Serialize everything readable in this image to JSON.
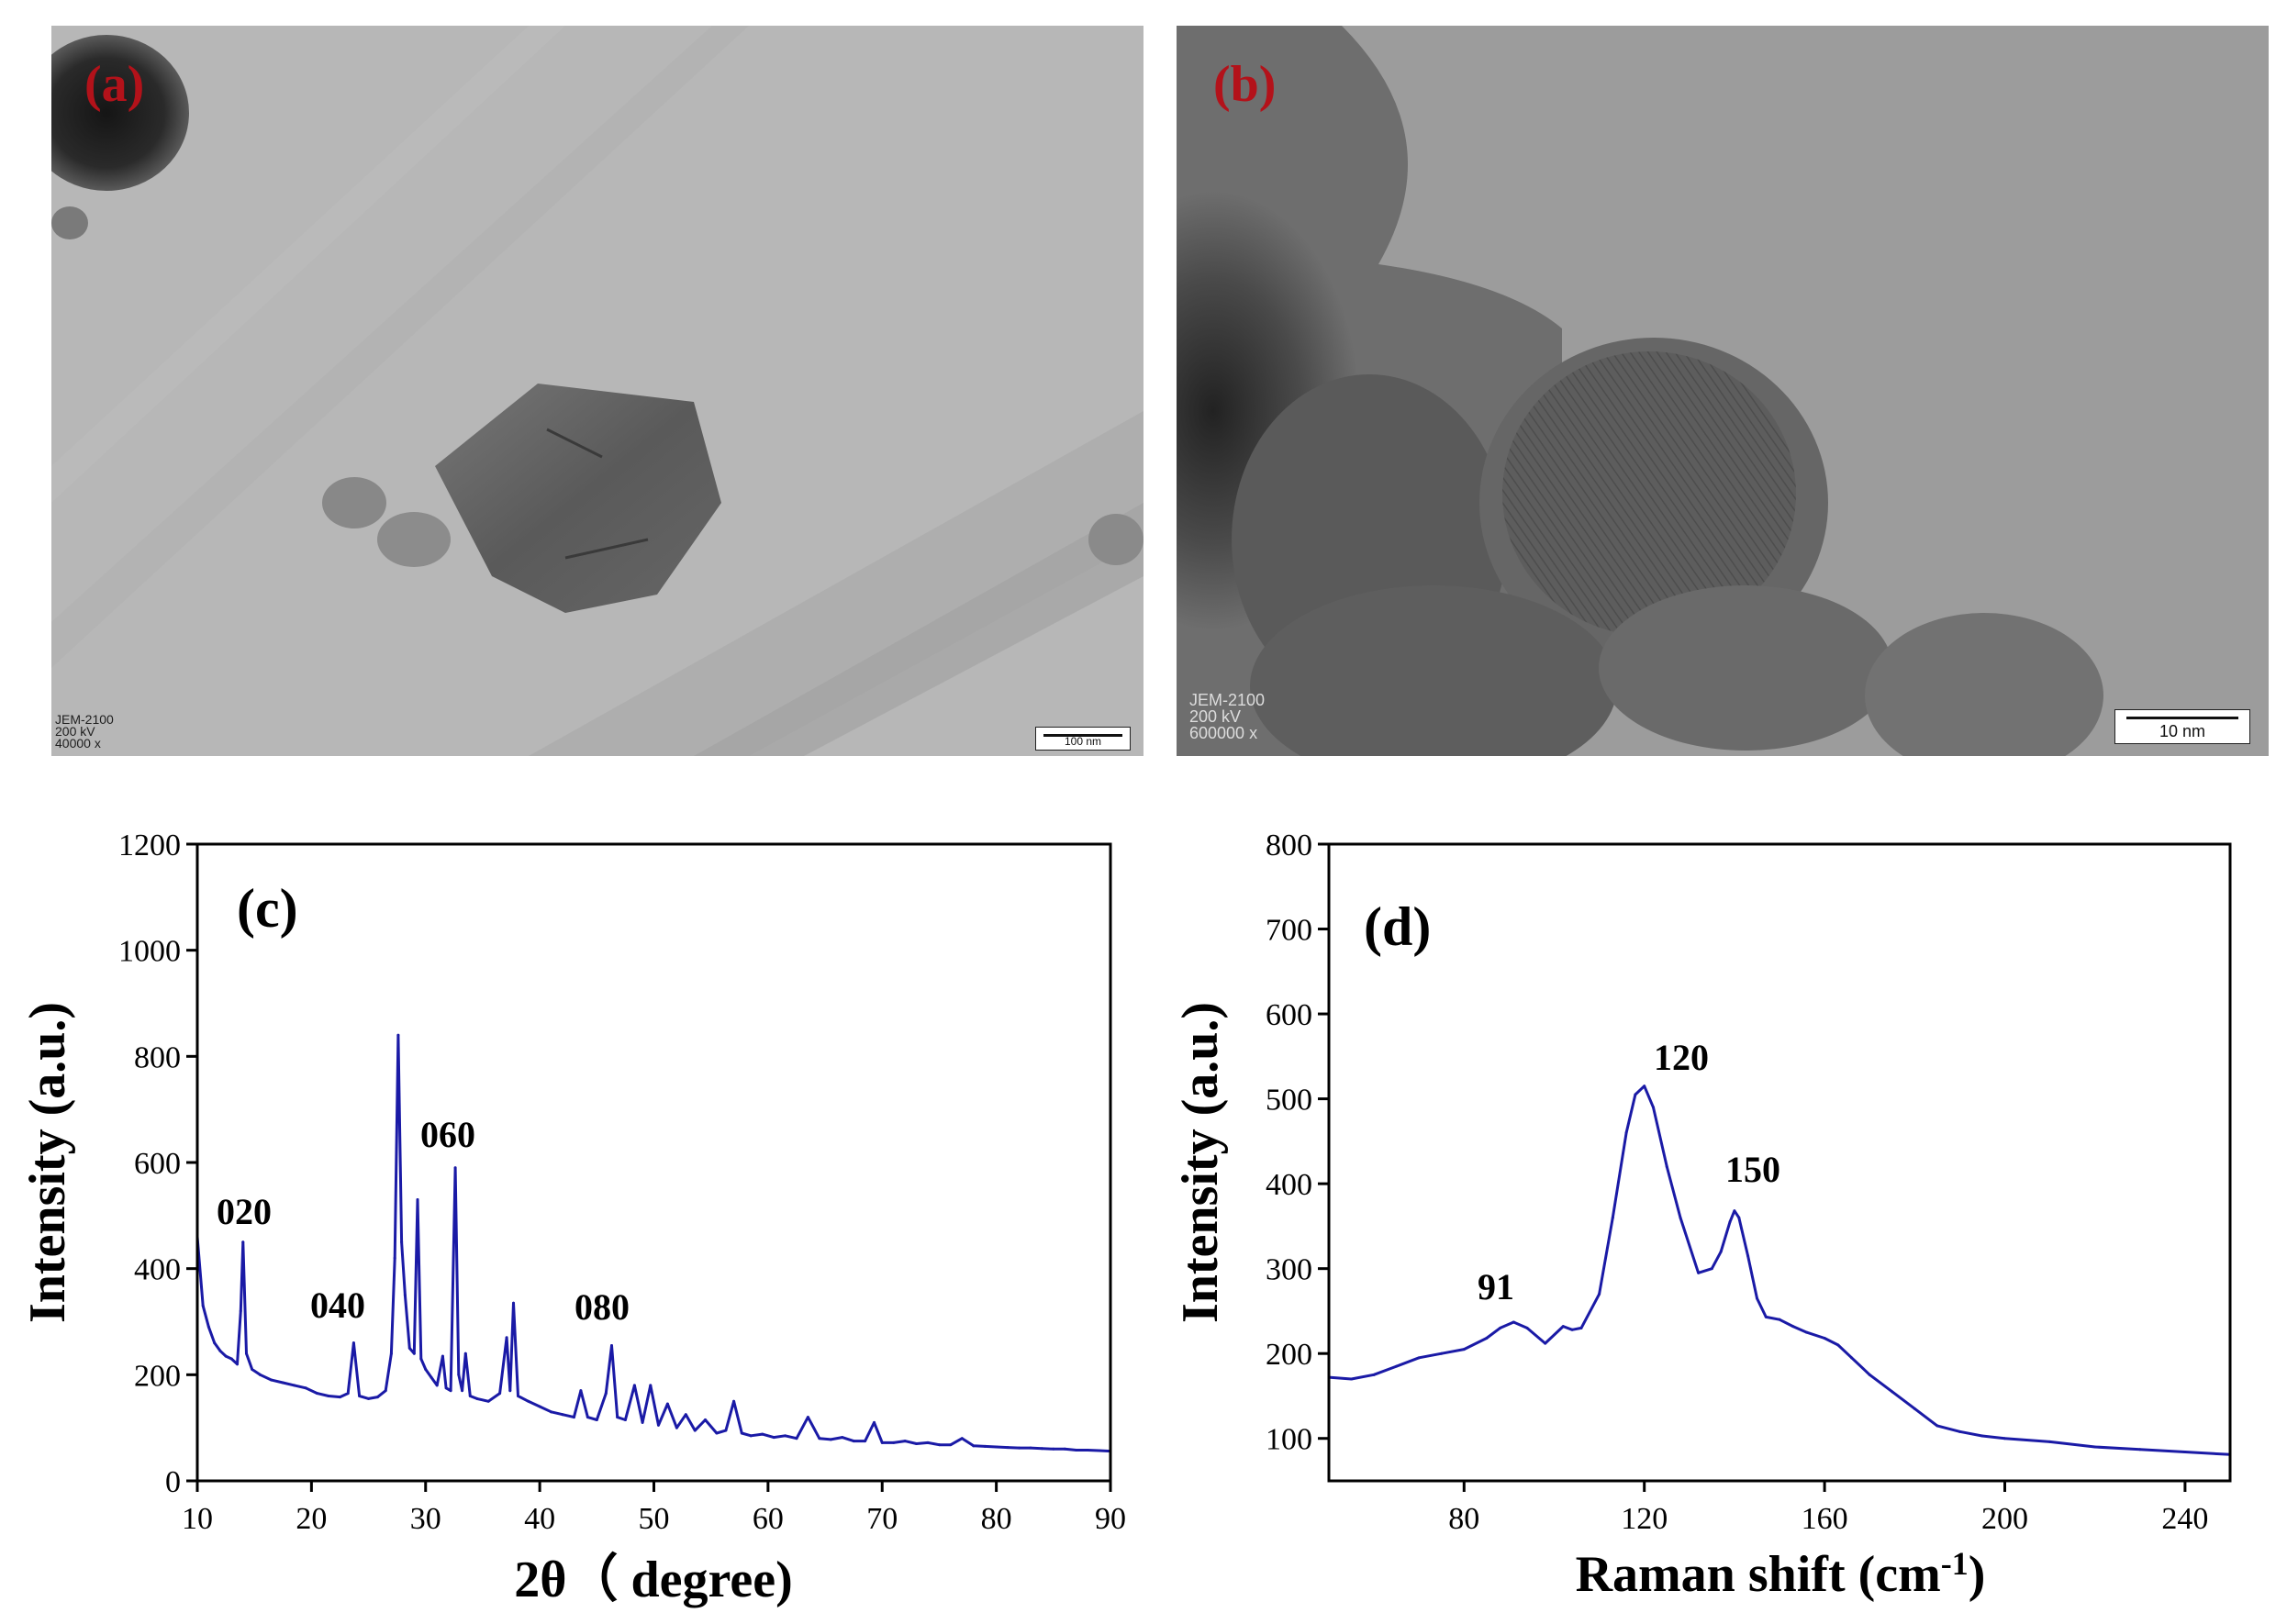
{
  "panel_a": {
    "label": "(a)",
    "instrument": "JEM-2100",
    "voltage": "200 kV",
    "magnification": "40000 x",
    "scale_bar": "100 nm"
  },
  "panel_b": {
    "label": "(b)",
    "instrument": "JEM-2100",
    "voltage": "200 kV",
    "magnification": "600000 x",
    "scale_bar": "10 nm"
  },
  "colors": {
    "series": "#1a1aa6",
    "label_red": "#b3121a",
    "axis": "#000000"
  },
  "chart_data": [
    {
      "type": "line",
      "panel_label": "(c)",
      "xlabel": "2θ（ degree)",
      "ylabel": "Intensity (a.u.)",
      "xlim": [
        10,
        90
      ],
      "ylim": [
        0,
        1200
      ],
      "xticks": [
        10,
        20,
        30,
        40,
        50,
        60,
        70,
        80,
        90
      ],
      "yticks": [
        0,
        200,
        400,
        600,
        800,
        1000,
        1200
      ],
      "grid": false,
      "x": [
        10,
        10.5,
        11,
        11.5,
        12,
        12.5,
        13,
        13.5,
        13.8,
        14,
        14.3,
        14.8,
        15.5,
        16.5,
        17.5,
        18.5,
        19.5,
        20.5,
        21.5,
        22.5,
        23.2,
        23.7,
        24.2,
        25,
        25.8,
        26.5,
        27,
        27.3,
        27.6,
        27.9,
        28.2,
        28.6,
        29,
        29.3,
        29.6,
        30,
        30.5,
        31,
        31.5,
        31.8,
        32.2,
        32.6,
        32.9,
        33.2,
        33.5,
        33.9,
        34.5,
        35.5,
        36.5,
        37.1,
        37.4,
        37.7,
        38.1,
        39,
        40,
        41,
        42,
        43,
        43.6,
        44.2,
        45,
        45.8,
        46.3,
        46.8,
        47.5,
        48.3,
        49,
        49.7,
        50.4,
        51.2,
        52,
        52.8,
        53.6,
        54.5,
        55.5,
        56.3,
        57,
        57.7,
        58.5,
        59.5,
        60.5,
        61.5,
        62.5,
        63.5,
        64.5,
        65.5,
        66.5,
        67.5,
        68.5,
        69.3,
        70,
        71,
        72,
        73,
        74,
        75,
        76,
        77,
        78,
        79,
        80,
        81,
        82,
        83,
        84,
        85,
        86,
        87,
        88,
        89,
        90
      ],
      "series": [
        {
          "values": [
            460,
            330,
            290,
            260,
            245,
            235,
            230,
            220,
            320,
            450,
            240,
            210,
            200,
            190,
            185,
            180,
            175,
            165,
            160,
            158,
            165,
            260,
            160,
            155,
            158,
            170,
            240,
            420,
            840,
            450,
            350,
            250,
            240,
            530,
            230,
            210,
            195,
            180,
            235,
            175,
            170,
            590,
            200,
            170,
            240,
            160,
            155,
            150,
            165,
            270,
            170,
            335,
            160,
            150,
            140,
            130,
            125,
            120,
            170,
            120,
            115,
            165,
            255,
            120,
            115,
            180,
            110,
            180,
            105,
            145,
            100,
            125,
            95,
            115,
            90,
            95,
            150,
            90,
            85,
            88,
            82,
            85,
            80,
            120,
            80,
            78,
            82,
            75,
            75,
            110,
            72,
            72,
            75,
            70,
            72,
            68,
            68,
            80,
            66,
            65,
            64,
            63,
            62,
            62,
            61,
            60,
            60,
            58,
            58,
            57,
            56
          ]
        }
      ],
      "annotations": [
        "020",
        "040",
        "060",
        "080"
      ]
    },
    {
      "type": "line",
      "panel_label": "(d)",
      "xlabel": "Raman shift (cm",
      "xlabel_sup": "-1",
      "xlabel_end": ")",
      "ylabel": "Intensity (a.u.)",
      "xlim": [
        50,
        250
      ],
      "ylim": [
        50,
        800
      ],
      "xticks": [
        80,
        120,
        160,
        200,
        240
      ],
      "yticks": [
        100,
        200,
        300,
        400,
        500,
        600,
        700,
        800
      ],
      "grid": false,
      "x": [
        50,
        55,
        60,
        65,
        70,
        75,
        80,
        85,
        88,
        91,
        94,
        98,
        102,
        104,
        106,
        110,
        113,
        116,
        118,
        120,
        122,
        125,
        128,
        132,
        135,
        137,
        139,
        140,
        141,
        143,
        145,
        147,
        150,
        153,
        156,
        160,
        163,
        166,
        170,
        175,
        180,
        185,
        190,
        195,
        200,
        210,
        220,
        230,
        240,
        250
      ],
      "series": [
        {
          "values": [
            172,
            170,
            175,
            185,
            195,
            200,
            205,
            218,
            230,
            237,
            230,
            212,
            232,
            228,
            230,
            270,
            360,
            460,
            505,
            515,
            490,
            420,
            360,
            295,
            300,
            320,
            355,
            368,
            360,
            315,
            265,
            243,
            240,
            232,
            225,
            218,
            210,
            195,
            175,
            155,
            135,
            115,
            108,
            103,
            100,
            96,
            90,
            87,
            84,
            81
          ]
        }
      ],
      "annotations": [
        "91",
        "120",
        "150"
      ]
    }
  ]
}
